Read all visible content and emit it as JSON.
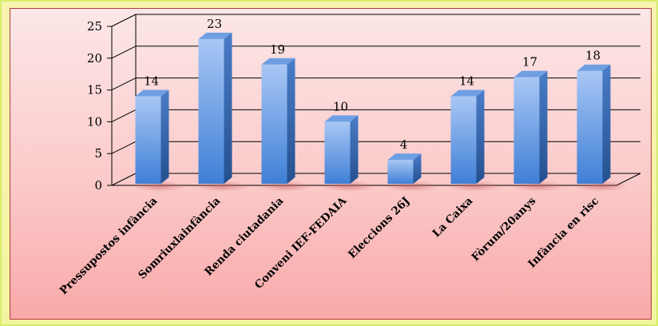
{
  "chart_data": {
    "type": "bar",
    "categories": [
      "Pressupostos infància",
      "Somriuxlainfància",
      "Renda ciutadania",
      "Conveni IEF-FEDAIA",
      "Eleccions 26J",
      "La Caixa",
      "Fòrum/20anys",
      "Infància en risc"
    ],
    "values": [
      14,
      23,
      19,
      10,
      4,
      14,
      17,
      18
    ],
    "ylim": [
      0,
      25
    ],
    "yticks": [
      0,
      5,
      10,
      15,
      20,
      25
    ],
    "grid": true,
    "legend": "none",
    "colors": {
      "bar_front_top": "#a9c7f5",
      "bar_front_bottom": "#3f7fd6",
      "bar_side": "#2d5fa8",
      "bar_top": "#6f9fe3",
      "grid": "#000000"
    }
  }
}
